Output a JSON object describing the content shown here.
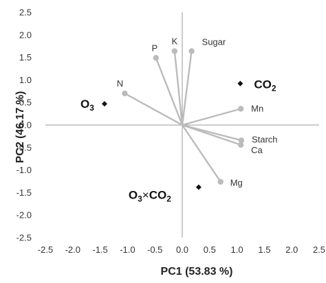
{
  "chart_data": {
    "type": "scatter",
    "title": "",
    "xlabel": "PC1 (53.83 %)",
    "ylabel": "PC2 (46.17 %)",
    "xlim": [
      -2.5,
      2.5
    ],
    "ylim": [
      -2.5,
      2.5
    ],
    "x_ticks": [
      "-2.5",
      "-2.0",
      "-1.5",
      "-1.0",
      "-0.5",
      "0.0",
      "0.5",
      "1.0",
      "1.5",
      "2.0",
      "2.5"
    ],
    "y_ticks": [
      "2.5",
      "2.0",
      "1.5",
      "1.0",
      "0.5",
      "0.0",
      "-0.5",
      "-1.0",
      "-1.5",
      "-2.0",
      "-2.5"
    ],
    "grid": false,
    "zero_lines": true,
    "vectors": [
      {
        "name": "P",
        "x": -0.48,
        "y": 1.49
      },
      {
        "name": "K",
        "x": -0.14,
        "y": 1.64
      },
      {
        "name": "Sugar",
        "x": 0.17,
        "y": 1.64
      },
      {
        "name": "N",
        "x": -1.05,
        "y": 0.7
      },
      {
        "name": "Mn",
        "x": 1.07,
        "y": 0.36
      },
      {
        "name": "Starch",
        "x": 1.08,
        "y": -0.34
      },
      {
        "name": "Ca",
        "x": 1.07,
        "y": -0.44
      },
      {
        "name": "Mg",
        "x": 0.7,
        "y": -1.26
      }
    ],
    "treatments": [
      {
        "name": "CO2",
        "base": "CO",
        "sub": "2",
        "x": 1.06,
        "y": 0.92
      },
      {
        "name": "O3",
        "base": "O",
        "sub": "3",
        "x": -1.42,
        "y": 0.47
      },
      {
        "name": "O3×CO2",
        "x": 0.3,
        "y": -1.38
      }
    ],
    "colors": {
      "vector": "#bbbbbb",
      "marker": "#111111",
      "axis": "#999999"
    }
  }
}
